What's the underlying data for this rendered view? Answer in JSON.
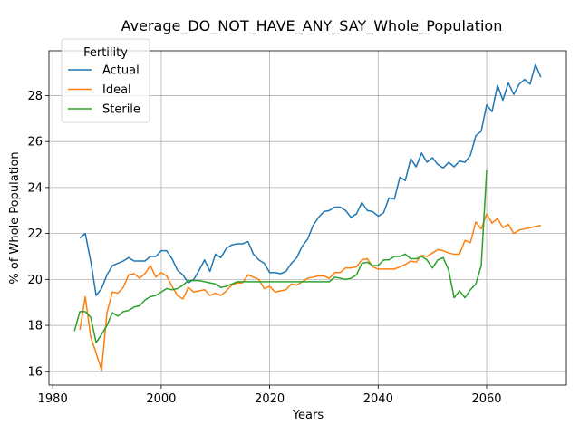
{
  "chart_data": {
    "type": "line",
    "title": "Average_DO_NOT_HAVE_ANY_SAY_Whole_Population",
    "xlabel": "Years",
    "ylabel": "% of Whole Population",
    "xlim": [
      1979.3,
      2074.7
    ],
    "ylim": [
      15.4,
      29.95
    ],
    "xticks": [
      1980,
      2000,
      2020,
      2040,
      2060
    ],
    "yticks": [
      16,
      18,
      20,
      22,
      24,
      26,
      28
    ],
    "grid": true,
    "legend": {
      "title": "Fertility",
      "placement": "top-left"
    },
    "colors": {
      "Actual": "#1f77b4",
      "Ideal": "#ff7f0e",
      "Sterile": "#2ca02c"
    },
    "series": [
      {
        "name": "Actual",
        "x": [
          1985,
          1986,
          1987,
          1988,
          1989,
          1990,
          1991,
          1992,
          1993,
          1994,
          1995,
          1996,
          1997,
          1998,
          1999,
          2000,
          2001,
          2002,
          2003,
          2004,
          2005,
          2006,
          2007,
          2008,
          2009,
          2010,
          2011,
          2012,
          2013,
          2014,
          2015,
          2016,
          2017,
          2018,
          2019,
          2020,
          2021,
          2022,
          2023,
          2024,
          2025,
          2026,
          2027,
          2028,
          2029,
          2030,
          2031,
          2032,
          2033,
          2034,
          2035,
          2036,
          2037,
          2038,
          2039,
          2040,
          2041,
          2042,
          2043,
          2044,
          2045,
          2046,
          2047,
          2048,
          2049,
          2050,
          2051,
          2052,
          2053,
          2054,
          2055,
          2056,
          2057,
          2058,
          2059,
          2060,
          2061,
          2062,
          2063,
          2064,
          2065,
          2066,
          2067,
          2068,
          2069,
          2070
        ],
        "y": [
          21.8,
          22.0,
          20.8,
          19.3,
          19.6,
          20.2,
          20.6,
          20.7,
          20.8,
          20.95,
          20.8,
          20.8,
          20.8,
          21.0,
          21.0,
          21.25,
          21.25,
          20.9,
          20.4,
          20.2,
          19.85,
          20.0,
          20.4,
          20.85,
          20.35,
          21.1,
          20.95,
          21.35,
          21.5,
          21.55,
          21.55,
          21.65,
          21.1,
          20.85,
          20.7,
          20.3,
          20.3,
          20.25,
          20.35,
          20.7,
          20.95,
          21.45,
          21.75,
          22.35,
          22.7,
          22.95,
          23.0,
          23.15,
          23.15,
          23.0,
          22.7,
          22.85,
          23.35,
          23.0,
          22.95,
          22.75,
          22.9,
          23.55,
          23.5,
          24.45,
          24.3,
          25.25,
          24.9,
          25.5,
          25.1,
          25.3,
          25.0,
          24.85,
          25.1,
          24.9,
          25.15,
          25.1,
          25.4,
          26.25,
          26.45,
          27.6,
          27.3,
          28.45,
          27.8,
          28.55,
          28.05,
          28.5,
          28.7,
          28.5,
          29.35,
          28.8
        ]
      },
      {
        "name": "Ideal",
        "x": [
          1985,
          1986,
          1987,
          1988,
          1989,
          1990,
          1991,
          1992,
          1993,
          1994,
          1995,
          1996,
          1997,
          1998,
          1999,
          2000,
          2001,
          2002,
          2003,
          2004,
          2005,
          2006,
          2007,
          2008,
          2009,
          2010,
          2011,
          2012,
          2013,
          2014,
          2015,
          2016,
          2017,
          2018,
          2019,
          2020,
          2021,
          2022,
          2023,
          2024,
          2025,
          2026,
          2027,
          2028,
          2029,
          2030,
          2031,
          2032,
          2033,
          2034,
          2035,
          2036,
          2037,
          2038,
          2039,
          2040,
          2041,
          2042,
          2043,
          2044,
          2045,
          2046,
          2047,
          2048,
          2049,
          2050,
          2051,
          2052,
          2053,
          2054,
          2055,
          2056,
          2057,
          2058,
          2059,
          2060,
          2061,
          2062,
          2063,
          2064,
          2065,
          2066,
          2067,
          2068,
          2069,
          2070
        ],
        "y": [
          17.8,
          19.25,
          17.5,
          16.8,
          16.05,
          18.55,
          19.45,
          19.4,
          19.65,
          20.2,
          20.25,
          20.05,
          20.25,
          20.6,
          20.1,
          20.3,
          20.15,
          19.7,
          19.3,
          19.15,
          19.65,
          19.45,
          19.5,
          19.55,
          19.3,
          19.4,
          19.3,
          19.5,
          19.75,
          19.85,
          19.85,
          20.2,
          20.1,
          20.0,
          19.6,
          19.7,
          19.45,
          19.5,
          19.55,
          19.8,
          19.75,
          19.9,
          20.05,
          20.1,
          20.15,
          20.15,
          20.05,
          20.3,
          20.3,
          20.5,
          20.5,
          20.55,
          20.85,
          20.9,
          20.55,
          20.45,
          20.45,
          20.45,
          20.45,
          20.55,
          20.65,
          20.8,
          20.75,
          21.05,
          21.0,
          21.15,
          21.3,
          21.25,
          21.15,
          21.1,
          21.1,
          21.7,
          21.6,
          22.5,
          22.2,
          22.85,
          22.45,
          22.65,
          22.25,
          22.4,
          22.0,
          22.15,
          22.2,
          22.25,
          22.3,
          22.35
        ]
      },
      {
        "name": "Sterile",
        "x": [
          1984,
          1985,
          1986,
          1987,
          1988,
          1989,
          1990,
          1991,
          1992,
          1993,
          1994,
          1995,
          1996,
          1997,
          1998,
          1999,
          2000,
          2001,
          2002,
          2003,
          2004,
          2005,
          2006,
          2007,
          2008,
          2009,
          2010,
          2011,
          2012,
          2013,
          2014,
          2015,
          2016,
          2017,
          2018,
          2019,
          2020,
          2021,
          2022,
          2023,
          2024,
          2025,
          2026,
          2027,
          2028,
          2029,
          2030,
          2031,
          2032,
          2033,
          2034,
          2035,
          2036,
          2037,
          2038,
          2039,
          2040,
          2041,
          2042,
          2043,
          2044,
          2045,
          2046,
          2047,
          2048,
          2049,
          2050,
          2051,
          2052,
          2053,
          2054,
          2055,
          2056,
          2057,
          2058,
          2059,
          2060
        ],
        "y": [
          17.75,
          18.6,
          18.6,
          18.35,
          17.25,
          17.6,
          18.0,
          18.55,
          18.4,
          18.6,
          18.65,
          18.8,
          18.85,
          19.1,
          19.25,
          19.3,
          19.45,
          19.6,
          19.55,
          19.6,
          19.75,
          19.95,
          19.95,
          19.95,
          19.9,
          19.85,
          19.8,
          19.65,
          19.7,
          19.8,
          19.9,
          19.9,
          19.9,
          19.9,
          19.9,
          19.9,
          19.9,
          19.9,
          19.9,
          19.9,
          19.9,
          19.9,
          19.9,
          19.9,
          19.9,
          19.9,
          19.9,
          19.9,
          20.1,
          20.05,
          20.0,
          20.05,
          20.2,
          20.7,
          20.75,
          20.6,
          20.6,
          20.85,
          20.85,
          21.0,
          21.0,
          21.1,
          20.9,
          20.9,
          21.0,
          20.85,
          20.5,
          20.85,
          20.95,
          20.4,
          19.2,
          19.5,
          19.2,
          19.55,
          19.8,
          20.6,
          24.75
        ]
      }
    ]
  }
}
